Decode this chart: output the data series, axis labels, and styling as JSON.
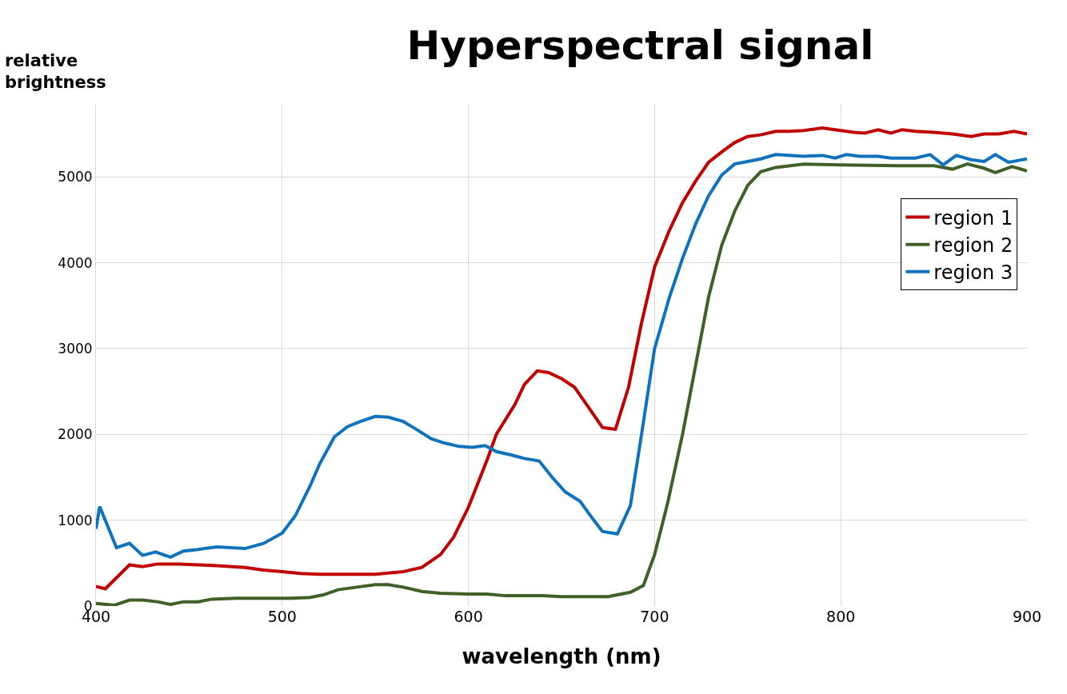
{
  "chart_data": {
    "type": "line",
    "title": "Hyperspectral signal",
    "ylabel": "relative brightness",
    "xlabel": "wavelength (nm)",
    "xlim": [
      400,
      900
    ],
    "xticks": [
      400,
      500,
      600,
      700,
      800,
      900
    ],
    "ylim": [
      0,
      5850
    ],
    "yticks": [
      0,
      1000,
      2000,
      3000,
      4000,
      5000
    ],
    "grid": true,
    "legend": "right",
    "line_style": "solid",
    "series": [
      {
        "name": "region 1",
        "color": "#c00000",
        "x": [
          400,
          405,
          418,
          425,
          433,
          445,
          455,
          465,
          480,
          490,
          500,
          510,
          520,
          530,
          550,
          565,
          575,
          585,
          592,
          600,
          610,
          615,
          625,
          630,
          637,
          643,
          650,
          657,
          665,
          672,
          679,
          686,
          693,
          700,
          708,
          715,
          722,
          729,
          736,
          743,
          750,
          757,
          765,
          772,
          780,
          790,
          800,
          807,
          813,
          820,
          827,
          833,
          840,
          850,
          860,
          870,
          877,
          885,
          893,
          900
        ],
        "values": [
          230,
          200,
          480,
          460,
          490,
          490,
          480,
          470,
          450,
          420,
          400,
          380,
          370,
          370,
          370,
          400,
          450,
          600,
          800,
          1150,
          1700,
          2000,
          2350,
          2580,
          2740,
          2720,
          2650,
          2550,
          2300,
          2080,
          2060,
          2550,
          3300,
          3950,
          4380,
          4700,
          4950,
          5170,
          5290,
          5400,
          5470,
          5490,
          5530,
          5530,
          5540,
          5570,
          5540,
          5520,
          5510,
          5550,
          5510,
          5550,
          5530,
          5520,
          5500,
          5470,
          5500,
          5500,
          5530,
          5500
        ]
      },
      {
        "name": "region 2",
        "color": "#3f6128",
        "x": [
          400,
          410,
          418,
          425,
          433,
          440,
          447,
          455,
          462,
          475,
          490,
          505,
          515,
          522,
          530,
          540,
          550,
          557,
          565,
          575,
          585,
          600,
          610,
          620,
          640,
          650,
          675,
          687,
          694,
          700,
          707,
          715,
          722,
          729,
          736,
          743,
          750,
          757,
          765,
          780,
          800,
          830,
          850,
          860,
          868,
          877,
          883,
          892,
          900
        ],
        "values": [
          30,
          10,
          70,
          70,
          50,
          20,
          50,
          50,
          80,
          90,
          90,
          90,
          100,
          130,
          190,
          220,
          250,
          250,
          220,
          170,
          150,
          140,
          140,
          120,
          120,
          110,
          110,
          160,
          240,
          600,
          1200,
          2000,
          2800,
          3600,
          4200,
          4600,
          4900,
          5060,
          5110,
          5150,
          5140,
          5130,
          5130,
          5090,
          5150,
          5100,
          5050,
          5120,
          5070
        ]
      },
      {
        "name": "region 3",
        "color": "#0f72bd",
        "x": [
          400,
          402,
          411,
          418,
          425,
          432,
          440,
          447,
          455,
          465,
          480,
          490,
          500,
          507,
          515,
          520,
          528,
          535,
          542,
          550,
          557,
          565,
          572,
          580,
          587,
          595,
          602,
          609,
          615,
          623,
          630,
          638,
          645,
          652,
          660,
          667,
          672,
          680,
          687,
          693,
          700,
          708,
          715,
          722,
          729,
          736,
          743,
          750,
          757,
          765,
          780,
          790,
          797,
          803,
          810,
          820,
          827,
          840,
          848,
          855,
          862,
          870,
          877,
          883,
          890,
          900
        ],
        "values": [
          900,
          1160,
          680,
          730,
          590,
          630,
          570,
          640,
          660,
          690,
          670,
          730,
          850,
          1050,
          1400,
          1650,
          1970,
          2090,
          2150,
          2210,
          2200,
          2150,
          2060,
          1950,
          1900,
          1860,
          1850,
          1870,
          1800,
          1760,
          1720,
          1690,
          1500,
          1330,
          1220,
          1010,
          870,
          840,
          1170,
          2000,
          3000,
          3600,
          4050,
          4450,
          4780,
          5020,
          5150,
          5180,
          5210,
          5260,
          5240,
          5250,
          5220,
          5260,
          5240,
          5240,
          5220,
          5220,
          5260,
          5140,
          5250,
          5200,
          5180,
          5260,
          5170,
          5210
        ]
      }
    ]
  }
}
